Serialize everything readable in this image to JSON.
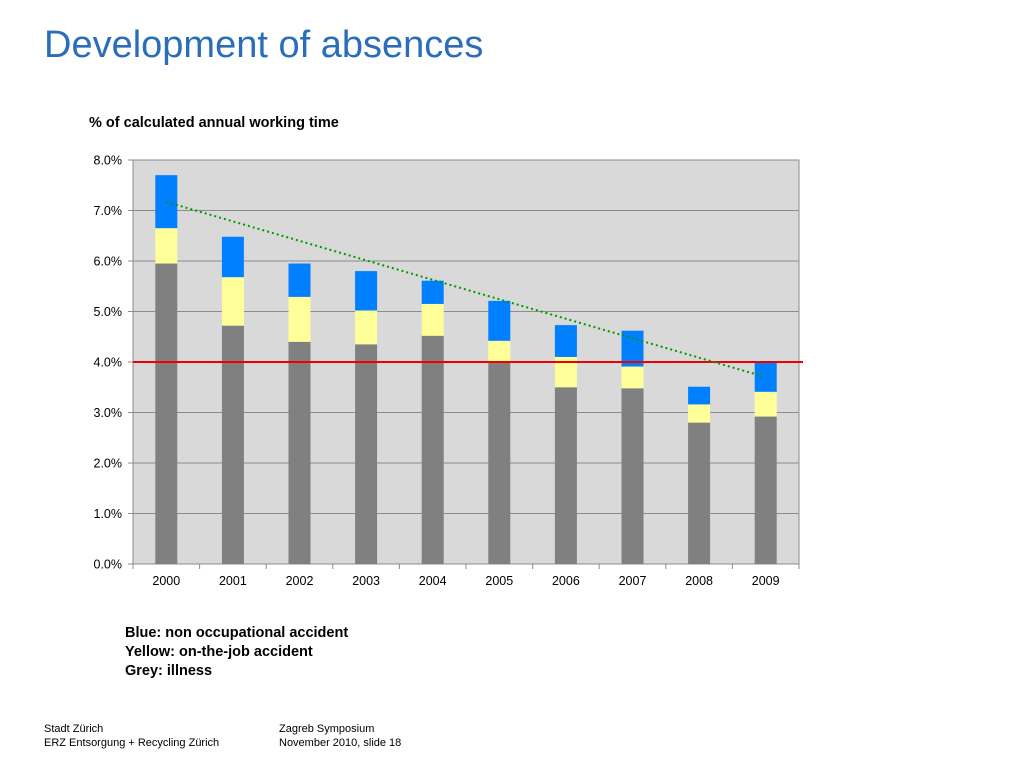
{
  "slide": {
    "title": "Development of absences"
  },
  "legend_notes": {
    "blue": "Blue:  non occupational accident",
    "yellow": "Yellow: on-the-job accident",
    "grey": "Grey: illness"
  },
  "footer": {
    "left_line1": "Stadt Zürich",
    "left_line2": "ERZ Entsorgung + Recycling Zürich",
    "right_line1": "Zagreb Symposium",
    "right_line2": "November 2010, slide 18"
  },
  "colors": {
    "title": "#2a6ebb",
    "plot_background": "#d9d9d9",
    "gridline": "#8c8c8c",
    "illness": "#808080",
    "on_the_job_accident": "#ffff99",
    "non_occupational_accident": "#0080ff",
    "target_line": "#ee0000",
    "trend_line": "#009900"
  },
  "chart_data": {
    "type": "bar",
    "stacked": true,
    "title": "% of calculated annual working time",
    "xlabel": "",
    "ylabel": "",
    "categories": [
      "2000",
      "2001",
      "2002",
      "2003",
      "2004",
      "2005",
      "2006",
      "2007",
      "2008",
      "2009"
    ],
    "series": [
      {
        "key": "illness",
        "values": [
          5.95,
          4.72,
          4.4,
          4.35,
          4.52,
          3.98,
          3.5,
          3.48,
          2.8,
          2.92
        ]
      },
      {
        "key": "on_the_job_accident",
        "values": [
          0.7,
          0.96,
          0.89,
          0.67,
          0.63,
          0.44,
          0.6,
          0.43,
          0.36,
          0.49
        ]
      },
      {
        "key": "non_occupational_accident",
        "values": [
          1.05,
          0.8,
          0.66,
          0.78,
          0.46,
          0.79,
          0.63,
          0.71,
          0.35,
          0.59
        ]
      }
    ],
    "reference_line": {
      "value": 4.0,
      "style": "solid",
      "color": "#ee0000"
    },
    "trend_line": {
      "start": 7.17,
      "end": 3.7,
      "style": "dotted",
      "color": "#009900"
    },
    "ylim": [
      0,
      8
    ],
    "yticks": [
      0,
      1,
      2,
      3,
      4,
      5,
      6,
      7,
      8
    ],
    "ytick_labels": [
      "0.0%",
      "1.0%",
      "2.0%",
      "3.0%",
      "4.0%",
      "5.0%",
      "6.0%",
      "7.0%",
      "8.0%"
    ],
    "grid": true,
    "legend": "text block below chart"
  }
}
